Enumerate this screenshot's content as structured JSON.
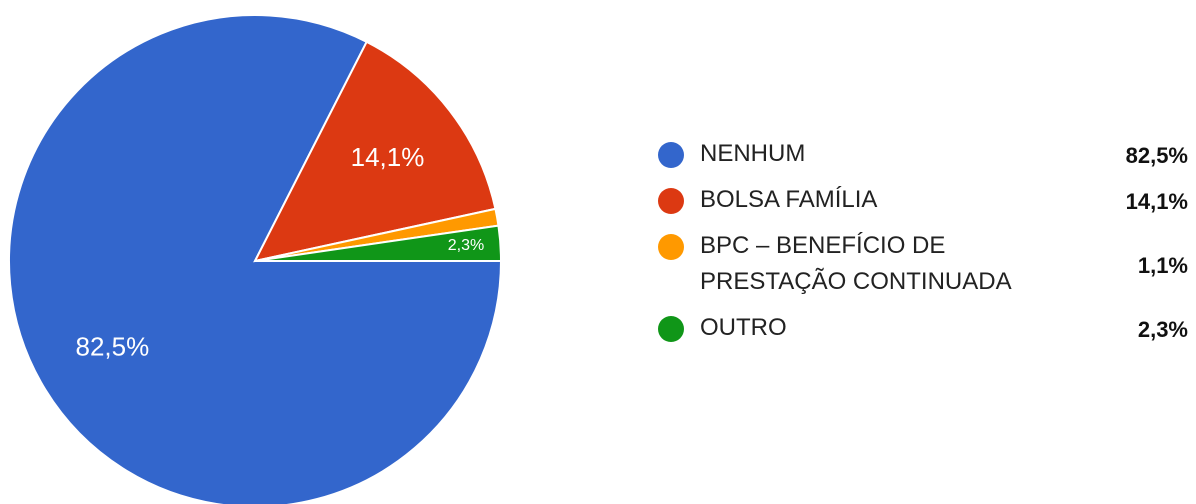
{
  "chart_data": {
    "type": "pie",
    "categories": [
      "NENHUM",
      "BOLSA FAMÍLIA",
      "BPC – BENEFÍCIO DE PRESTAÇÃO CONTINUADA",
      "OUTRO"
    ],
    "values": [
      82.5,
      14.1,
      1.1,
      2.3
    ],
    "value_labels": [
      "82,5%",
      "14,1%",
      "1,1%",
      "2,3%"
    ],
    "colors": [
      "#3366cc",
      "#dc3912",
      "#ff9900",
      "#109618"
    ],
    "legend": "right"
  }
}
